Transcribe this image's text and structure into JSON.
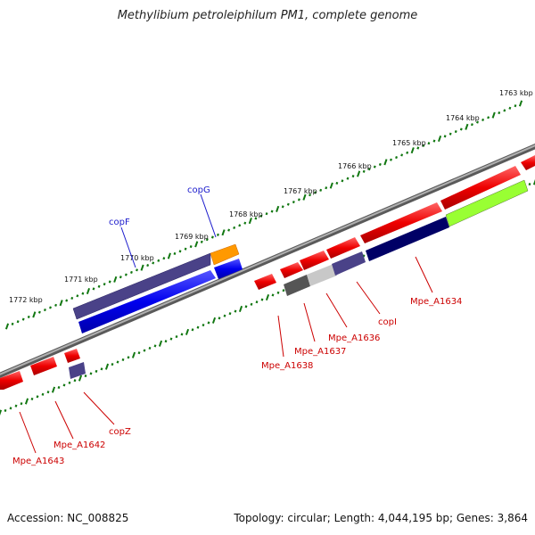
{
  "title": "Methylibium petroleiphilum PM1, complete genome",
  "footer": {
    "accession": "Accession: NC_008825",
    "summary": "Topology: circular; Length: 4,044,195 bp; Genes: 3,864"
  },
  "scale_labels": [
    "1763 kbp",
    "1764 kbp",
    "1765 kbp",
    "1766 kbp",
    "1767 kbp",
    "1768 kbp",
    "1769 kbp",
    "1770 kbp",
    "1771 kbp",
    "1772 kbp"
  ],
  "gene_labels": {
    "copG": "copG",
    "copF": "copF",
    "Mpe_A1634": "Mpe_A1634",
    "copI": "copI",
    "Mpe_A1636": "Mpe_A1636",
    "Mpe_A1637": "Mpe_A1637",
    "Mpe_A1638": "Mpe_A1638",
    "copZ": "copZ",
    "Mpe_A1642": "Mpe_A1642",
    "Mpe_A1643": "Mpe_A1643"
  },
  "colors": {
    "gene_red": "#ee0000",
    "gene_blue": "#0000ee",
    "gene_navy": "#000066",
    "gene_purple": "#4a4288",
    "gene_orange": "#ff9900",
    "gene_green": "#99ff33",
    "backbone": "#888888",
    "tick": "#117711",
    "label_red": "#cc0000",
    "label_blue": "#1a1acc"
  }
}
